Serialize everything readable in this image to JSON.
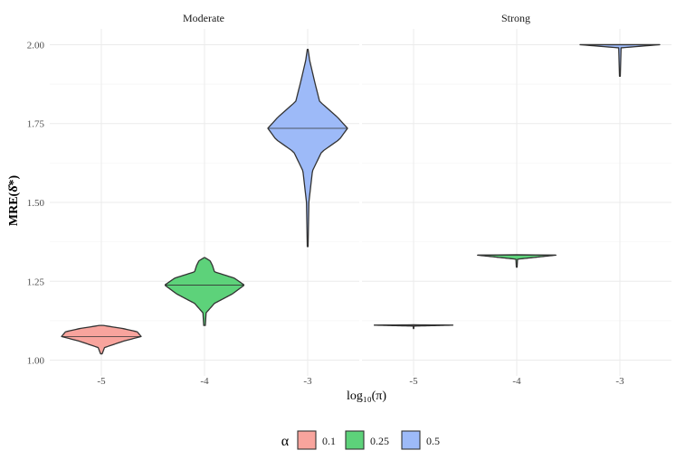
{
  "chart_data": {
    "type": "violin",
    "facets": [
      "Moderate",
      "Strong"
    ],
    "x_categories": [
      "-5",
      "-4",
      "-3"
    ],
    "xlabel": "log₁₀(π)",
    "ylabel": "MRE(δ̂*)",
    "ylim": [
      0.95,
      2.05
    ],
    "y_ticks": [
      "1.00",
      "1.25",
      "1.50",
      "1.75",
      "2.00"
    ],
    "y_tick_values": [
      1.0,
      1.25,
      1.5,
      1.75,
      2.0
    ],
    "grid": true,
    "legend": {
      "title": "α",
      "position": "bottom",
      "entries": [
        {
          "label": "0.1",
          "color": "#F8A49D"
        },
        {
          "label": "0.25",
          "color": "#5DD27A"
        },
        {
          "label": "0.5",
          "color": "#9DBAF8"
        }
      ]
    },
    "series": [
      {
        "facet": "Moderate",
        "x": "-5",
        "alpha_label": "0.1",
        "min": 1.02,
        "max": 1.11,
        "median": 1.075,
        "density": [
          [
            1.02,
            0.02
          ],
          [
            1.04,
            0.08
          ],
          [
            1.06,
            0.55
          ],
          [
            1.075,
            1.0
          ],
          [
            1.09,
            0.9
          ],
          [
            1.1,
            0.55
          ],
          [
            1.11,
            0.05
          ]
        ]
      },
      {
        "facet": "Moderate",
        "x": "-4",
        "alpha_label": "0.25",
        "min": 1.11,
        "max": 1.325,
        "median": 1.238,
        "density": [
          [
            1.11,
            0.02
          ],
          [
            1.15,
            0.04
          ],
          [
            1.18,
            0.25
          ],
          [
            1.21,
            0.7
          ],
          [
            1.238,
            1.0
          ],
          [
            1.26,
            0.75
          ],
          [
            1.28,
            0.25
          ],
          [
            1.3,
            0.2
          ],
          [
            1.315,
            0.14
          ],
          [
            1.325,
            0.01
          ]
        ]
      },
      {
        "facet": "Moderate",
        "x": "-3",
        "alpha_label": "0.5",
        "min": 1.36,
        "max": 1.985,
        "median": 1.735,
        "density": [
          [
            1.36,
            0.01
          ],
          [
            1.5,
            0.03
          ],
          [
            1.6,
            0.12
          ],
          [
            1.66,
            0.35
          ],
          [
            1.7,
            0.8
          ],
          [
            1.735,
            1.0
          ],
          [
            1.77,
            0.75
          ],
          [
            1.82,
            0.3
          ],
          [
            1.88,
            0.18
          ],
          [
            1.95,
            0.05
          ],
          [
            1.985,
            0.01
          ]
        ]
      },
      {
        "facet": "Strong",
        "x": "-5",
        "alpha_label": "0.1",
        "min": 1.1,
        "max": 1.112,
        "median": 1.111,
        "density": [
          [
            1.1,
            0.005
          ],
          [
            1.108,
            0.01
          ],
          [
            1.111,
            1.0
          ],
          [
            1.112,
            0.0
          ]
        ]
      },
      {
        "facet": "Strong",
        "x": "-4",
        "alpha_label": "0.25",
        "min": 1.295,
        "max": 1.334,
        "median": 1.333,
        "density": [
          [
            1.295,
            0.01
          ],
          [
            1.32,
            0.02
          ],
          [
            1.333,
            1.0
          ],
          [
            1.334,
            0.0
          ]
        ]
      },
      {
        "facet": "Strong",
        "x": "-3",
        "alpha_label": "0.5",
        "min": 1.9,
        "max": 2.0,
        "median": 2.0,
        "density": [
          [
            1.9,
            0.01
          ],
          [
            1.99,
            0.03
          ],
          [
            2.0,
            1.0
          ]
        ]
      }
    ]
  }
}
